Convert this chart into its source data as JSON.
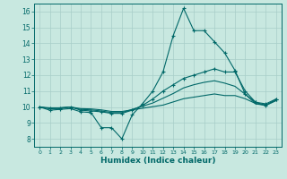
{
  "title": "",
  "xlabel": "Humidex (Indice chaleur)",
  "background_color": "#c8e8e0",
  "grid_color": "#a8cec8",
  "line_color": "#006868",
  "xlim": [
    -0.5,
    23.5
  ],
  "ylim": [
    7.5,
    16.5
  ],
  "yticks": [
    8,
    9,
    10,
    11,
    12,
    13,
    14,
    15,
    16
  ],
  "xticks": [
    0,
    1,
    2,
    3,
    4,
    5,
    6,
    7,
    8,
    9,
    10,
    11,
    12,
    13,
    14,
    15,
    16,
    17,
    18,
    19,
    20,
    21,
    22,
    23
  ],
  "line1_x": [
    0,
    1,
    2,
    3,
    4,
    5,
    6,
    7,
    8,
    9,
    10,
    11,
    12,
    13,
    14,
    15,
    16,
    17,
    18,
    19,
    20,
    21,
    22,
    23
  ],
  "line1_y": [
    10.0,
    9.8,
    9.85,
    9.9,
    9.7,
    9.65,
    8.7,
    8.7,
    8.0,
    9.5,
    10.2,
    11.0,
    12.2,
    14.5,
    16.2,
    14.8,
    14.8,
    14.1,
    13.4,
    12.3,
    10.8,
    10.3,
    10.1,
    10.5
  ],
  "line2_x": [
    0,
    1,
    2,
    3,
    4,
    5,
    6,
    7,
    8,
    9,
    10,
    11,
    12,
    13,
    14,
    15,
    16,
    17,
    18,
    19,
    20,
    21,
    22,
    23
  ],
  "line2_y": [
    10.0,
    9.9,
    9.9,
    10.0,
    9.8,
    9.75,
    9.7,
    9.6,
    9.6,
    9.8,
    10.1,
    10.5,
    11.0,
    11.4,
    11.8,
    12.0,
    12.2,
    12.4,
    12.2,
    12.2,
    11.0,
    10.3,
    10.2,
    10.5
  ],
  "line3_x": [
    0,
    1,
    2,
    3,
    4,
    5,
    6,
    7,
    8,
    9,
    10,
    11,
    12,
    13,
    14,
    15,
    16,
    17,
    18,
    19,
    20,
    21,
    22,
    23
  ],
  "line3_y": [
    10.0,
    9.9,
    9.95,
    10.0,
    9.85,
    9.82,
    9.75,
    9.65,
    9.65,
    9.85,
    10.05,
    10.25,
    10.55,
    10.85,
    11.2,
    11.4,
    11.55,
    11.65,
    11.5,
    11.3,
    10.8,
    10.2,
    10.1,
    10.4
  ],
  "line4_x": [
    0,
    1,
    2,
    3,
    4,
    5,
    6,
    7,
    8,
    9,
    10,
    11,
    12,
    13,
    14,
    15,
    16,
    17,
    18,
    19,
    20,
    21,
    22,
    23
  ],
  "line4_y": [
    10.0,
    9.95,
    9.95,
    10.0,
    9.9,
    9.88,
    9.82,
    9.72,
    9.72,
    9.82,
    9.92,
    10.02,
    10.12,
    10.32,
    10.52,
    10.62,
    10.72,
    10.82,
    10.72,
    10.72,
    10.52,
    10.22,
    10.12,
    10.42
  ]
}
